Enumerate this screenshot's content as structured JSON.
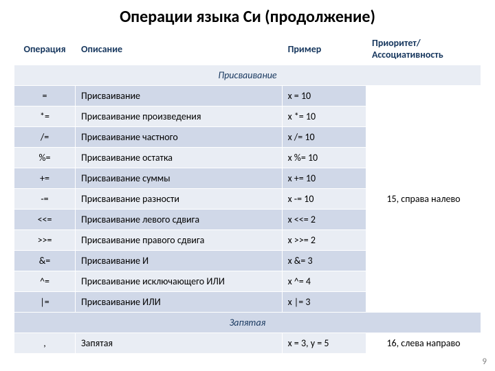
{
  "title": "Операции языка Си (продолжение)",
  "headers": {
    "operation": "Операция",
    "description": "Описание",
    "example": "Пример",
    "priority": "Приоритет/ Ассоциативность"
  },
  "sections": [
    {
      "name": "Присваивание",
      "priority": "15, справа налево",
      "rows": [
        {
          "op": "=",
          "desc": "Присваивание",
          "ex": "x = 10"
        },
        {
          "op": "*=",
          "desc": "Присваивание произведения",
          "ex": "x *= 10"
        },
        {
          "op": "/=",
          "desc": "Присваивание частного",
          "ex": "x /= 10"
        },
        {
          "op": "%=",
          "desc": "Присваивание остатка",
          "ex": "x %= 10"
        },
        {
          "op": "+=",
          "desc": "Присваивание суммы",
          "ex": "x += 10"
        },
        {
          "op": "-=",
          "desc": "Присваивание разности",
          "ex": "x -= 10"
        },
        {
          "op": "<<=",
          "desc": "Присваивание левого сдвига",
          "ex": "x <<= 2"
        },
        {
          "op": ">>=",
          "desc": "Присваивание правого сдвига",
          "ex": "x >>= 2"
        },
        {
          "op": "&=",
          "desc": "Присваивание И",
          "ex": "x &= 3"
        },
        {
          "op": "^=",
          "desc": "Присваивание исключающего ИЛИ",
          "ex": "x ^= 4"
        },
        {
          "op": "|=",
          "desc": "Присваивание ИЛИ",
          "ex": "x |= 3"
        }
      ]
    },
    {
      "name": "Запятая",
      "priority": "16, слева направо",
      "rows": [
        {
          "op": ",",
          "desc": "Запятая",
          "ex": "x = 3, y = 5"
        }
      ]
    }
  ],
  "page_number": "9",
  "colors": {
    "heading": "#17375e",
    "row_odd": "#e9edf4",
    "row_even": "#d0d8e8",
    "text": "#000000",
    "page_num": "#808080"
  },
  "fonts": {
    "title_size": 24,
    "body_size": 14
  }
}
